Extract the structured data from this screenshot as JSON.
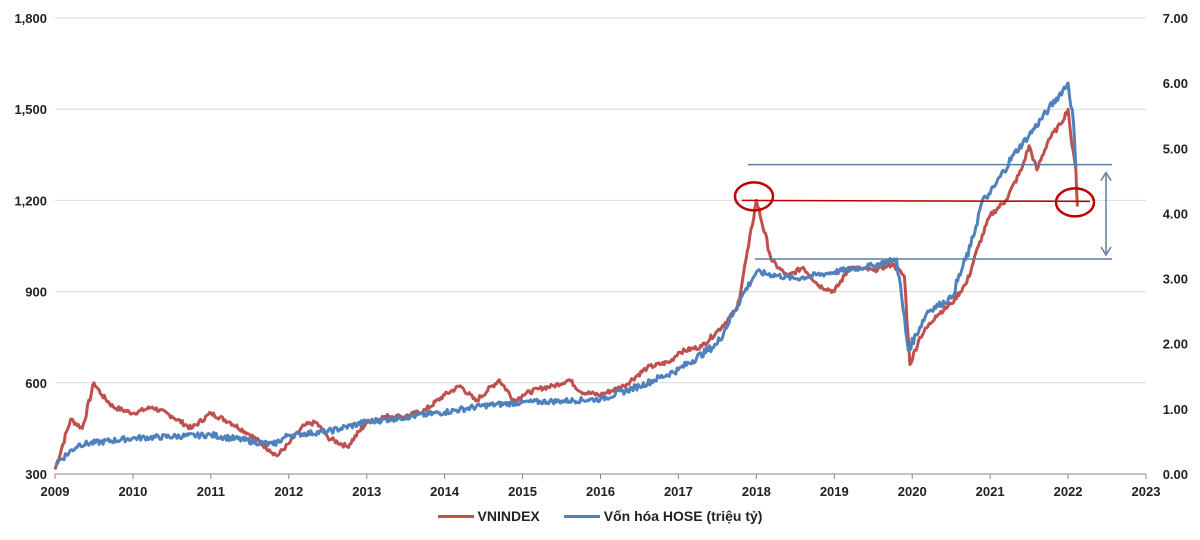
{
  "chart_data": {
    "type": "line",
    "x_ticks": [
      "2009",
      "2010",
      "2011",
      "2012",
      "2013",
      "2014",
      "2015",
      "2016",
      "2017",
      "2018",
      "2019",
      "2020",
      "2021",
      "2022",
      "2023"
    ],
    "xlim": [
      2009,
      2023
    ],
    "y_left": {
      "ticks": [
        "300",
        "600",
        "900",
        "1,200",
        "1,500",
        "1,800"
      ],
      "lim": [
        300,
        1800
      ]
    },
    "y_right": {
      "ticks": [
        "0.00",
        "1.00",
        "2.00",
        "3.00",
        "4.00",
        "5.00",
        "6.00",
        "7.00"
      ],
      "lim": [
        0,
        7
      ]
    },
    "grid": "horizontal",
    "legend_position": "bottom",
    "series": [
      {
        "name": "VNINDEX",
        "axis": "left",
        "color": "#c0504d",
        "x": [
          2009.0,
          2009.2,
          2009.35,
          2009.5,
          2009.6,
          2009.75,
          2010.0,
          2010.25,
          2010.5,
          2010.75,
          2011.0,
          2011.25,
          2011.5,
          2011.75,
          2011.85,
          2012.0,
          2012.2,
          2012.35,
          2012.5,
          2012.75,
          2013.0,
          2013.25,
          2013.5,
          2013.75,
          2014.0,
          2014.2,
          2014.4,
          2014.7,
          2014.9,
          2015.0,
          2015.2,
          2015.4,
          2015.6,
          2015.75,
          2016.0,
          2016.3,
          2016.6,
          2016.9,
          2017.0,
          2017.3,
          2017.5,
          2017.75,
          2017.9,
          2018.0,
          2018.2,
          2018.4,
          2018.6,
          2018.8,
          2019.0,
          2019.2,
          2019.5,
          2019.75,
          2019.9,
          2019.97,
          2020.1,
          2020.3,
          2020.5,
          2020.7,
          2020.85,
          2021.0,
          2021.2,
          2021.4,
          2021.5,
          2021.6,
          2021.75,
          2021.9,
          2022.0,
          2022.05,
          2022.1,
          2022.12
        ],
        "y": [
          315,
          480,
          450,
          600,
          560,
          520,
          500,
          520,
          490,
          450,
          500,
          470,
          430,
          380,
          360,
          400,
          460,
          470,
          420,
          390,
          470,
          490,
          490,
          510,
          560,
          590,
          540,
          610,
          540,
          560,
          580,
          590,
          610,
          570,
          560,
          590,
          650,
          670,
          700,
          720,
          770,
          840,
          1050,
          1200,
          1000,
          950,
          980,
          920,
          900,
          980,
          970,
          990,
          950,
          660,
          750,
          820,
          860,
          930,
          1050,
          1150,
          1200,
          1300,
          1380,
          1300,
          1400,
          1450,
          1500,
          1380,
          1300,
          1180
        ]
      },
      {
        "name": "Vốn hóa HOSE (triệu tỷ)",
        "axis": "right",
        "color": "#4f81bd",
        "x": [
          2009.0,
          2009.3,
          2010.0,
          2011.0,
          2011.8,
          2012.0,
          2012.5,
          2013.0,
          2014.0,
          2014.5,
          2015.0,
          2015.5,
          2016.0,
          2016.5,
          2017.0,
          2017.5,
          2017.8,
          2018.0,
          2018.5,
          2019.0,
          2019.5,
          2019.8,
          2019.95,
          2020.2,
          2020.5,
          2020.75,
          2020.9,
          2021.0,
          2021.3,
          2021.5,
          2021.75,
          2022.0,
          2022.07,
          2022.1
        ],
        "y": [
          0.15,
          0.45,
          0.55,
          0.6,
          0.45,
          0.6,
          0.65,
          0.8,
          0.95,
          1.05,
          1.1,
          1.12,
          1.15,
          1.35,
          1.6,
          2.0,
          2.7,
          3.1,
          3.0,
          3.1,
          3.2,
          3.3,
          1.9,
          2.5,
          2.7,
          3.5,
          4.2,
          4.3,
          4.9,
          5.2,
          5.6,
          6.0,
          5.4,
          4.7
        ]
      }
    ],
    "annotations": {
      "reference_level_left": 1200,
      "band_right": [
        3.3,
        4.75
      ]
    }
  },
  "legend": {
    "vnindex": "VNINDEX",
    "hose": "Vốn hóa HOSE (triệu tỷ)"
  }
}
